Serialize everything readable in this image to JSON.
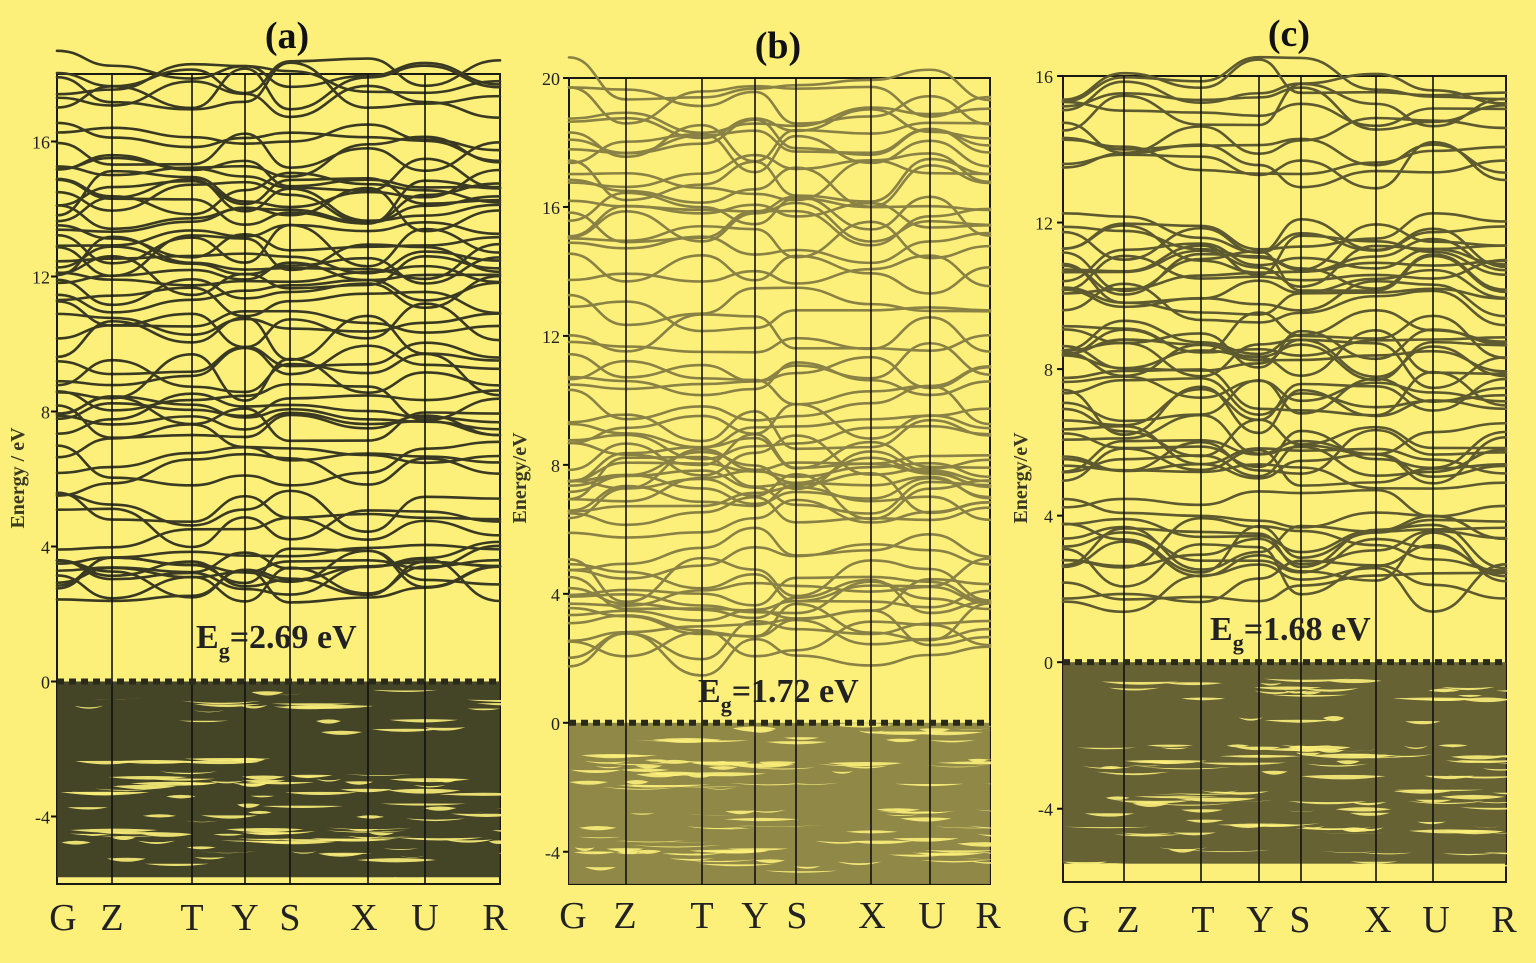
{
  "page": {
    "background": "#fcf07a"
  },
  "chart_data": [
    {
      "type": "line",
      "panel_label": "(a)",
      "ylabel": "Energy / eV",
      "xlabel": "",
      "k_points": [
        "G",
        "Z",
        "T",
        "Y",
        "S",
        "X",
        "U",
        "R"
      ],
      "ylim": [
        -6,
        18
      ],
      "yticks": [
        -4,
        0,
        4,
        8,
        12,
        16
      ],
      "fermi_level": 0,
      "band_gap_label": "E",
      "band_gap_subscript": "g",
      "band_gap_value": "=2.69 eV",
      "band_gap_eV": 2.69,
      "conduction_band_min_eV": 2.69,
      "valence_band_range_eV": [
        -5.8,
        0
      ],
      "conduction_band_range_eV": [
        2.69,
        18
      ],
      "band_color": "#3a3a22"
    },
    {
      "type": "line",
      "panel_label": "(b)",
      "ylabel": "Energy/eV",
      "xlabel": "",
      "k_points": [
        "G",
        "Z",
        "T",
        "Y",
        "S",
        "X",
        "U",
        "R"
      ],
      "ylim": [
        -5,
        20
      ],
      "yticks": [
        -4,
        0,
        4,
        8,
        12,
        16,
        20
      ],
      "fermi_level": 0,
      "band_gap_label": "E",
      "band_gap_subscript": "g",
      "band_gap_value": "=1.72 eV",
      "band_gap_eV": 1.72,
      "conduction_band_min_eV": 1.72,
      "valence_band_range_eV": [
        -5,
        0
      ],
      "conduction_band_range_eV": [
        1.72,
        20
      ],
      "band_color": "#8a8244"
    },
    {
      "type": "line",
      "panel_label": "(c)",
      "ylabel": "Energy/eV",
      "xlabel": "",
      "k_points": [
        "G",
        "Z",
        "T",
        "Y",
        "S",
        "X",
        "U",
        "R"
      ],
      "ylim": [
        -6,
        16
      ],
      "yticks": [
        -4,
        0,
        4,
        8,
        12,
        16
      ],
      "fermi_level": 0,
      "band_gap_label": "E",
      "band_gap_subscript": "g",
      "band_gap_value": "=1.68 eV",
      "band_gap_eV": 1.68,
      "conduction_band_min_eV": 1.68,
      "valence_band_range_eV": [
        -5.5,
        0
      ],
      "conduction_band_range_eV": [
        1.68,
        16
      ],
      "band_color": "#5e5a30"
    }
  ]
}
